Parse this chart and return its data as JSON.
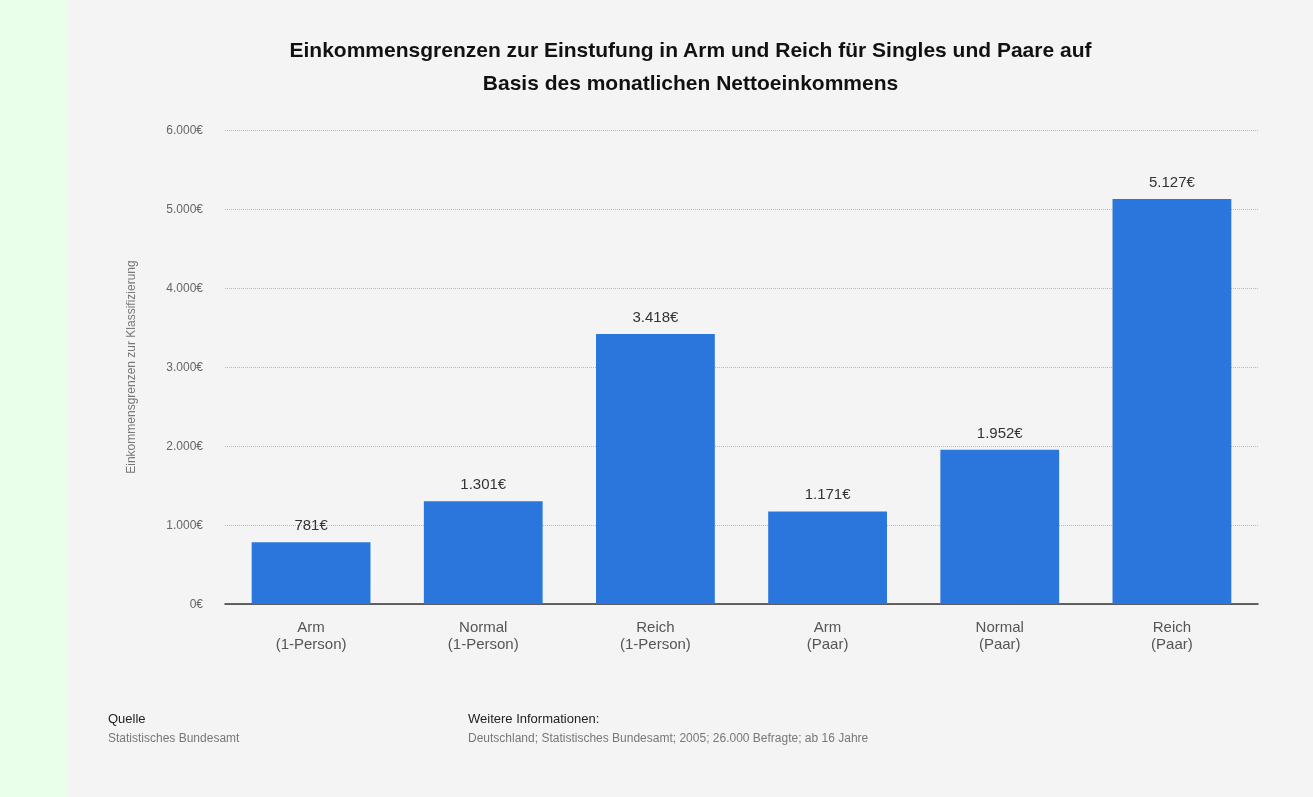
{
  "chart_data": {
    "type": "bar",
    "title": "Einkommensgrenzen zur Einstufung in Arm und Reich für Singles und Paare auf\nBasis des monatlichen Nettoeinkommens",
    "ylabel": "Einkommensgrenzen zur Klassifizierung",
    "categories": [
      "Arm\n(1-Person)",
      "Normal\n(1-Person)",
      "Reich\n(1-Person)",
      "Arm\n(Paar)",
      "Normal\n(Paar)",
      "Reich\n(Paar)"
    ],
    "values": [
      781,
      1301,
      3418,
      1171,
      1952,
      5127
    ],
    "value_labels": [
      "781€",
      "1.301€",
      "3.418€",
      "1.171€",
      "1.952€",
      "5.127€"
    ],
    "color": "#2a76dd",
    "ylim": [
      0,
      6000
    ],
    "yticks": [
      {
        "value": 0,
        "label": "0€"
      },
      {
        "value": 1000,
        "label": "1.000€"
      },
      {
        "value": 2000,
        "label": "2.000€"
      },
      {
        "value": 3000,
        "label": "3.000€"
      },
      {
        "value": 4000,
        "label": "4.000€"
      },
      {
        "value": 5000,
        "label": "5.000€"
      },
      {
        "value": 6000,
        "label": "6.000€"
      }
    ],
    "grid": "y",
    "annotations": [
      "Quelle",
      "Statistisches Bundesamt",
      "Weitere Informationen:",
      "Deutschland; Statistisches Bundesamt; 2005; 26.000 Befragte; ab 16 Jahre"
    ]
  }
}
